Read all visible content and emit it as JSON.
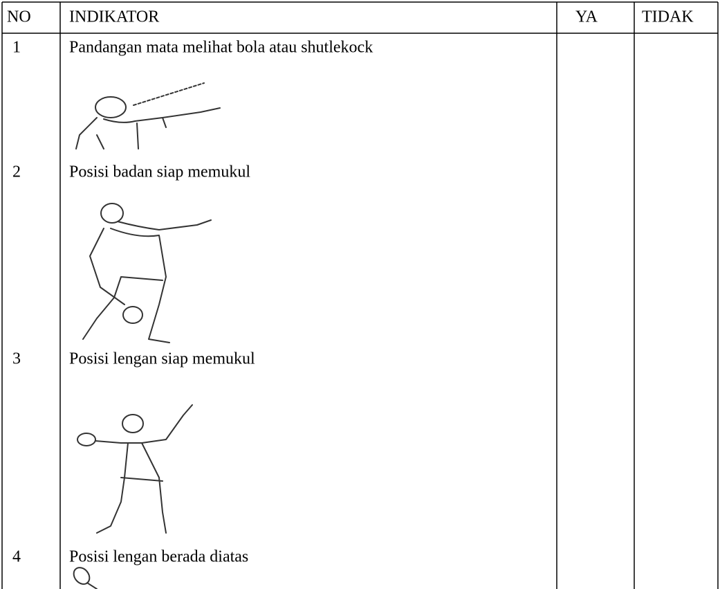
{
  "table": {
    "header": [
      "NO",
      "INDIKATOR",
      "YA",
      "TIDAK"
    ],
    "rows": [
      [
        "1",
        "Pandangan mata melihat bola atau shutlekock"
      ],
      [
        "2",
        "Posisi badan siap memukul"
      ],
      [
        "3",
        "Posisi lengan siap memukul"
      ],
      [
        "4",
        "Posisi lengan berada diatas"
      ]
    ]
  }
}
